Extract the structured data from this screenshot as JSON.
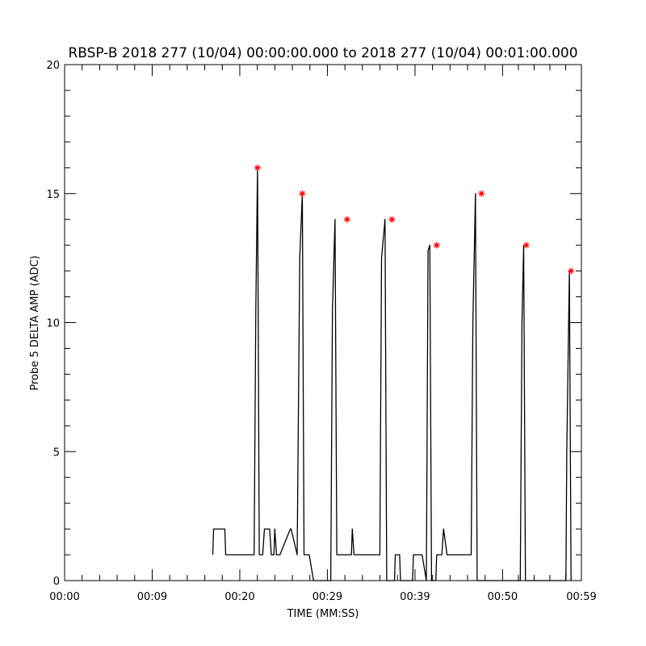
{
  "chart_data": {
    "type": "line",
    "title": "RBSP-B 2018 277 (10/04) 00:00:00.000 to 2018 277 (10/04) 00:01:00.000",
    "xlabel": "TIME (MM:SS)",
    "ylabel": "Probe 5 DELTA AMP (ADC)",
    "xlim": [
      0,
      60
    ],
    "ylim": [
      0,
      20
    ],
    "x_ticks": [
      {
        "value": 0,
        "label": "00:00"
      },
      {
        "value": 10.17,
        "label": "00:09"
      },
      {
        "value": 20.34,
        "label": "00:20"
      },
      {
        "value": 30.51,
        "label": "00:29"
      },
      {
        "value": 40.68,
        "label": "00:39"
      },
      {
        "value": 50.85,
        "label": "00:50"
      },
      {
        "value": 60,
        "label": "00:59"
      }
    ],
    "y_ticks": [
      {
        "value": 0,
        "label": "0"
      },
      {
        "value": 5,
        "label": "5"
      },
      {
        "value": 10,
        "label": "10"
      },
      {
        "value": 15,
        "label": "15"
      },
      {
        "value": 20,
        "label": "20"
      }
    ],
    "series": [
      {
        "line_color": "#000000",
        "x": [
          17.2,
          17.3,
          18.6,
          18.7,
          22.0,
          22.2,
          22.4,
          22.6,
          23.0,
          23.2,
          23.8,
          24.0,
          24.3,
          24.4,
          24.6,
          25.0,
          26.2,
          26.3,
          27.0,
          27.3,
          27.6,
          27.8,
          28.4,
          28.9,
          30.9,
          31.1,
          31.4,
          31.6,
          33.3,
          33.4,
          33.6,
          36.6,
          36.8,
          37.2,
          37.4,
          38.3,
          38.4,
          38.9,
          39.0,
          39.5,
          40.4,
          40.5,
          41.5,
          42.0,
          42.2,
          42.4,
          42.6,
          43.1,
          43.2,
          43.8,
          44.0,
          44.4,
          44.6,
          45.0,
          47.2,
          47.4,
          47.7,
          47.9,
          52.9,
          53.1,
          53.3,
          53.5,
          58.2,
          58.3,
          58.6,
          58.8
        ],
        "y": [
          1,
          2,
          2,
          1,
          1,
          10.5,
          16,
          1,
          1,
          2,
          2,
          1,
          1,
          2,
          1,
          1,
          2,
          2,
          1,
          12.5,
          15,
          1,
          1,
          0,
          0,
          10.5,
          14,
          1,
          1,
          2,
          1,
          1,
          12.5,
          14,
          0,
          0,
          1,
          1,
          0,
          0,
          0,
          1,
          1,
          0,
          12.8,
          13,
          0,
          0,
          1,
          1,
          2,
          1,
          1,
          1,
          1,
          10,
          15,
          0,
          0,
          10,
          13,
          0,
          0,
          5,
          12,
          0
        ]
      },
      {
        "marker": "asterisk",
        "marker_color": "#ff0000",
        "x": [
          22.4,
          27.6,
          32.8,
          38.0,
          43.2,
          48.4,
          53.6,
          58.8
        ],
        "y": [
          16,
          15,
          14,
          14,
          13,
          15,
          13,
          12
        ]
      }
    ],
    "grid": false,
    "legend": "none"
  }
}
